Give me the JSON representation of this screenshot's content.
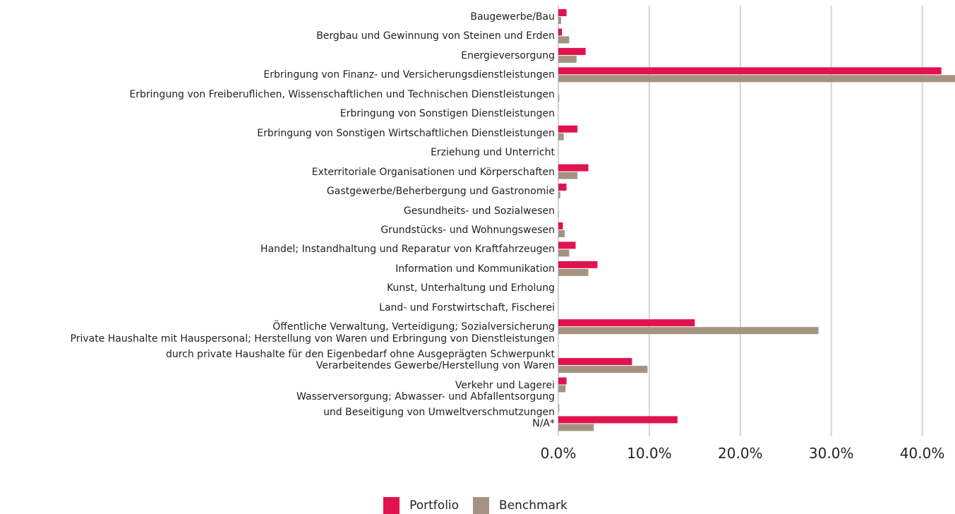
{
  "chart_data": {
    "type": "barh",
    "categories": [
      "Baugewerbe/Bau",
      "Bergbau und Gewinnung von Steinen und Erden",
      "Energieversorgung",
      "Erbringung von Finanz- und Versicherungsdienstleistungen",
      "Erbringung von Freiberuflichen, Wissenschaftlichen und Technischen Dienstleistungen",
      "Erbringung von Sonstigen Dienstleistungen",
      "Erbringung von Sonstigen Wirtschaftlichen Dienstleistungen",
      "Erziehung und Unterricht",
      "Exterritoriale Organisationen und Körperschaften",
      "Gastgewerbe/Beherbergung und Gastronomie",
      "Gesundheits- und Sozialwesen",
      "Grundstücks- und Wohnungswesen",
      "Handel; Instandhaltung und Reparatur von Kraftfahrzeugen",
      "Information und Kommunikation",
      "Kunst, Unterhaltung und Erholung",
      "Land- und Forstwirtschaft, Fischerei",
      "Öffentliche Verwaltung, Verteidigung; Sozialversicherung",
      "Private Haushalte mit Hauspersonal; Herstellung von Waren und Erbringung von Dienstleistungen\ndurch private Haushalte für den Eigenbedarf ohne Ausgeprägten Schwerpunkt",
      "Verarbeitendes Gewerbe/Herstellung von Waren",
      "Verkehr und Lagerei",
      "Wasserversorgung; Abwasser- und Abfallentsorgung\nund Beseitigung von Umweltverschmutzungen",
      "N/A*"
    ],
    "series": [
      {
        "name": "Portfolio",
        "color": "#e0134f",
        "values": [
          0.9,
          0.4,
          3.0,
          42.1,
          0,
          0,
          2.1,
          0,
          3.3,
          0.9,
          0,
          0.5,
          1.9,
          4.3,
          0,
          0,
          15.0,
          0,
          8.1,
          0.9,
          0,
          13.1
        ]
      },
      {
        "name": "Benchmark",
        "color": "#a49381",
        "values": [
          0.3,
          1.2,
          2.0,
          43.6,
          0.1,
          0,
          0.6,
          0,
          2.1,
          0.2,
          0.05,
          0.7,
          1.2,
          3.3,
          0,
          0,
          28.6,
          0,
          9.8,
          0.8,
          0.1,
          3.9
        ]
      }
    ],
    "xlim": [
      0,
      43.6
    ],
    "xticks": [
      {
        "value": 0,
        "label": "0.0%"
      },
      {
        "value": 10,
        "label": "10.0%"
      },
      {
        "value": 20,
        "label": "20.0%"
      },
      {
        "value": 30,
        "label": "30.0%"
      },
      {
        "value": 40,
        "label": "40.0%"
      }
    ],
    "grid": true,
    "legend": "bottom"
  }
}
